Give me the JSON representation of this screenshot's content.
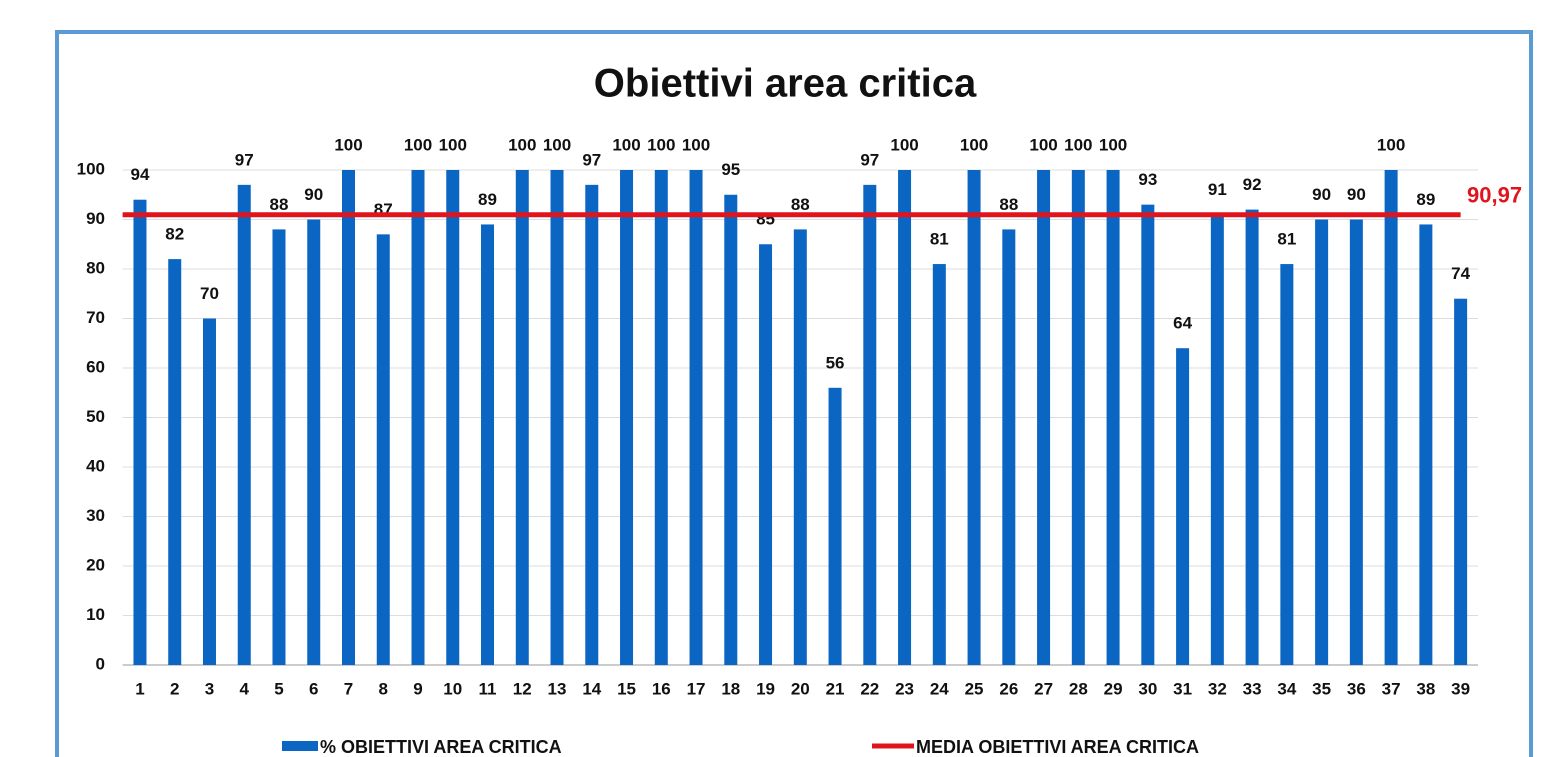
{
  "chart_data": {
    "type": "bar",
    "title": "Obiettivi area critica",
    "categories": [
      "1",
      "2",
      "3",
      "4",
      "5",
      "6",
      "7",
      "8",
      "9",
      "10",
      "11",
      "12",
      "13",
      "14",
      "15",
      "16",
      "17",
      "18",
      "19",
      "20",
      "21",
      "22",
      "23",
      "24",
      "25",
      "26",
      "27",
      "28",
      "29",
      "30",
      "31",
      "32",
      "33",
      "34",
      "35",
      "36",
      "37",
      "38",
      "39"
    ],
    "series": [
      {
        "name": "% OBIETTIVI AREA CRITICA",
        "color": "#0a66c2",
        "values": [
          94,
          82,
          70,
          97,
          88,
          90,
          100,
          87,
          100,
          100,
          89,
          100,
          100,
          97,
          100,
          100,
          100,
          95,
          85,
          88,
          56,
          97,
          100,
          81,
          100,
          88,
          100,
          100,
          100,
          93,
          64,
          91,
          92,
          81,
          90,
          90,
          100,
          89,
          74
        ]
      }
    ],
    "reference_line": {
      "name": "MEDIA OBIETTIVI AREA CRITICA",
      "color": "#e0141c",
      "value": 90.97,
      "value_label": "90,97"
    },
    "ylim": [
      0,
      100
    ],
    "yticks": [
      0,
      10,
      20,
      30,
      40,
      50,
      60,
      70,
      80,
      90,
      100
    ],
    "grid": true
  }
}
